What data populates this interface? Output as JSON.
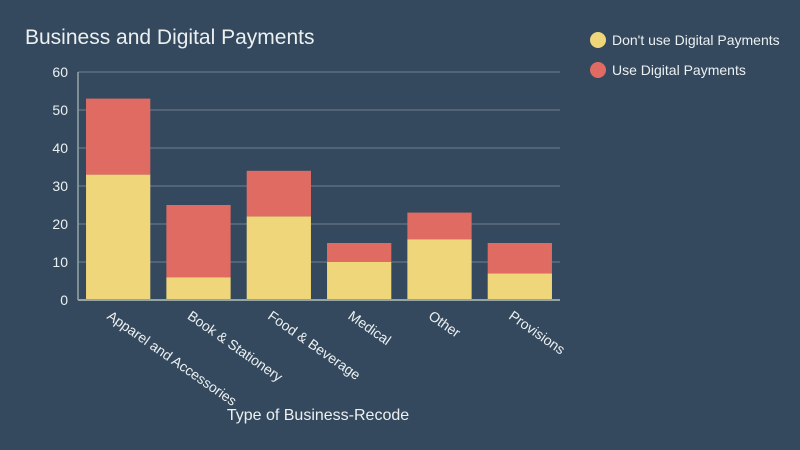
{
  "chart_data": {
    "type": "bar",
    "stacked": true,
    "title": "Business and Digital Payments",
    "xlabel": "Type of Business-Recode",
    "ylabel": "",
    "categories": [
      "Apparel and Accessories",
      "Book & Stationery",
      "Food & Beverage",
      "Medical",
      "Other",
      "Provisions"
    ],
    "series": [
      {
        "name": "Don't use Digital Payments",
        "color": "#f0d67a",
        "values": [
          33,
          6,
          22,
          10,
          16,
          7
        ]
      },
      {
        "name": "Use Digital Payments",
        "color": "#e06b62",
        "values": [
          20,
          19,
          12,
          5,
          7,
          8
        ]
      }
    ],
    "ylim": [
      0,
      60
    ],
    "yticks": [
      0,
      10,
      20,
      30,
      40,
      50,
      60
    ],
    "grid": true,
    "legend_position": "top-right",
    "colors": {
      "background": "#34495e",
      "grid": "#5d6d7e",
      "text": "#ecf0f1"
    }
  }
}
